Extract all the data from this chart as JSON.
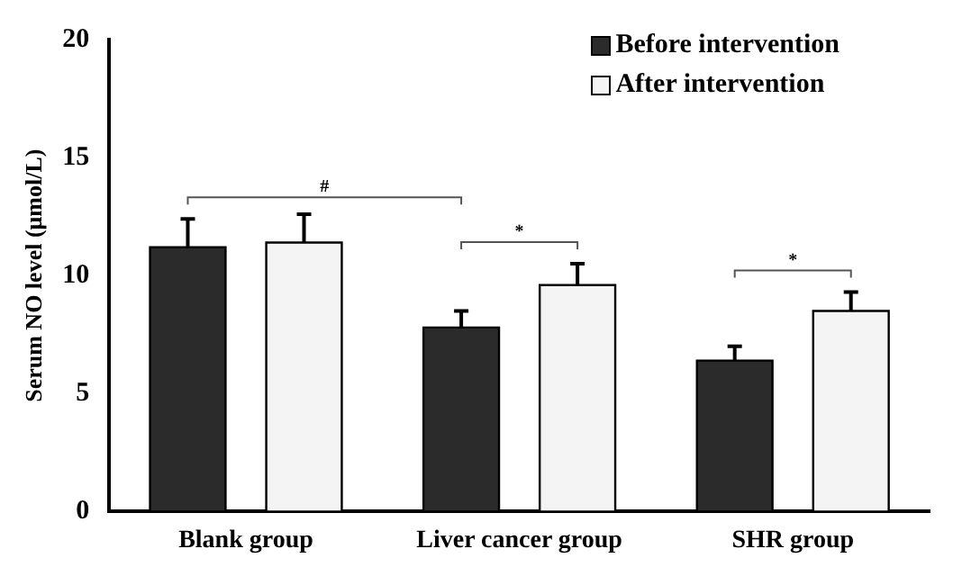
{
  "chart_data": {
    "type": "bar",
    "ylabel": "Serum NO level (μmol/L)",
    "categories": [
      "Blank group",
      "Liver cancer group",
      "SHR group"
    ],
    "series": [
      {
        "name": "Before intervention",
        "color": "#2b2b2b",
        "values": [
          11.2,
          7.8,
          6.4
        ],
        "errors": [
          [
            11.2,
            12.4
          ],
          [
            7.8,
            8.5
          ],
          [
            6.4,
            7.0
          ]
        ]
      },
      {
        "name": "After intervention",
        "color": "#f4f4f4",
        "values": [
          11.4,
          9.6,
          8.5
        ],
        "errors": [
          [
            11.4,
            12.6
          ],
          [
            9.6,
            10.5
          ],
          [
            8.5,
            9.3
          ]
        ]
      }
    ],
    "annotations": [
      "#",
      "*",
      "*"
    ],
    "ylim": [
      0,
      20
    ],
    "yticks": [
      0,
      5,
      10,
      15,
      20
    ],
    "grid": false,
    "legend": "top right"
  }
}
